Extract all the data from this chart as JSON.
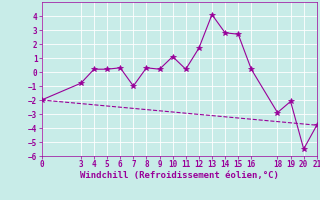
{
  "xlabel": "Windchill (Refroidissement éolien,°C)",
  "bg_color": "#c8ece8",
  "grid_color": "#ffffff",
  "line_color": "#990099",
  "xlim": [
    0,
    21
  ],
  "ylim": [
    -6,
    5
  ],
  "xticks": [
    0,
    3,
    4,
    5,
    6,
    7,
    8,
    9,
    10,
    11,
    12,
    13,
    14,
    15,
    16,
    18,
    19,
    20,
    21
  ],
  "yticks": [
    -6,
    -5,
    -4,
    -3,
    -2,
    -1,
    0,
    1,
    2,
    3,
    4
  ],
  "data_x": [
    0,
    3,
    4,
    5,
    6,
    7,
    8,
    9,
    10,
    11,
    12,
    13,
    14,
    15,
    16,
    18,
    19,
    20,
    21
  ],
  "data_y": [
    -2.0,
    -0.8,
    0.2,
    0.2,
    0.3,
    -1.0,
    0.3,
    0.2,
    1.1,
    0.2,
    1.7,
    4.1,
    2.8,
    2.7,
    0.2,
    -2.9,
    -2.1,
    -5.5,
    -3.8
  ],
  "trend_x": [
    0,
    21
  ],
  "trend_y": [
    -2.0,
    -3.8
  ],
  "marker": "*",
  "markersize": 4,
  "linewidth": 0.8,
  "tick_fontsize": 5.5,
  "xlabel_fontsize": 6.5
}
